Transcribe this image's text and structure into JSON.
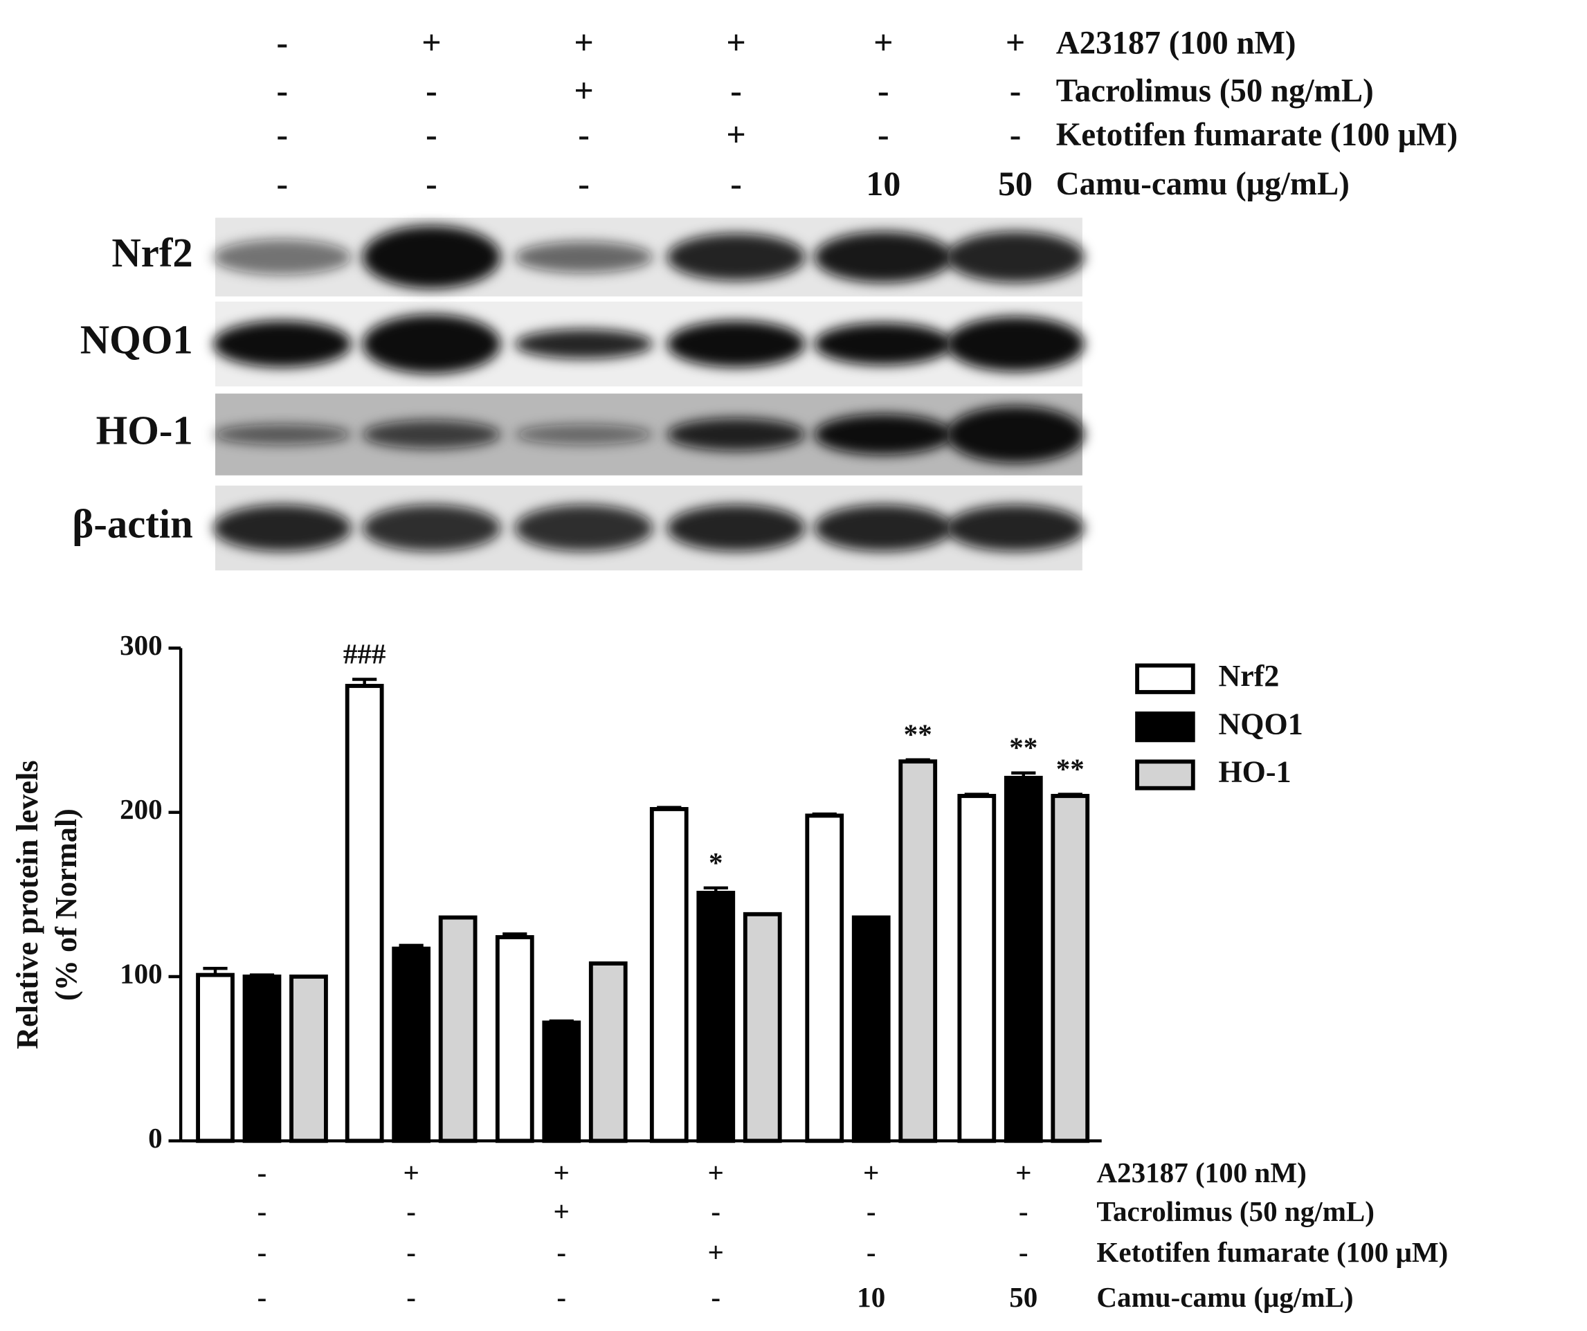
{
  "chart_data": {
    "type": "bar",
    "treatments": [
      {
        "label": "A23187 (100 nM)",
        "marks": [
          "-",
          "+",
          "+",
          "+",
          "+",
          "+"
        ]
      },
      {
        "label": "Tacrolimus (50 ng/mL)",
        "marks": [
          "-",
          "-",
          "+",
          "-",
          "-",
          "-"
        ]
      },
      {
        "label": "Ketotifen fumarate (100 μM)",
        "marks": [
          "-",
          "-",
          "-",
          "+",
          "-",
          "-"
        ]
      },
      {
        "label": "Camu-camu (μg/mL)",
        "marks": [
          "-",
          "-",
          "-",
          "-",
          "10",
          "50"
        ]
      }
    ],
    "blot_labels": [
      "Nrf2",
      "NQO1",
      "HO-1",
      "β-actin"
    ],
    "y_label": [
      "Relative protein levels",
      "(% of Normal)"
    ],
    "categories": [
      null,
      null,
      null,
      null,
      null,
      null
    ],
    "series": [
      {
        "name": "Nrf2",
        "color": "#ffffff",
        "values": [
          101,
          277,
          124,
          202,
          198,
          210
        ],
        "errors": [
          4,
          4,
          2,
          1,
          1,
          1
        ],
        "significance": [
          null,
          "###",
          null,
          null,
          null,
          null
        ]
      },
      {
        "name": "NQO1",
        "color": "#000000",
        "values": [
          100,
          117,
          72,
          151,
          136,
          221
        ],
        "errors": [
          1,
          2,
          1,
          3,
          0,
          3
        ],
        "significance": [
          null,
          null,
          null,
          "*",
          null,
          "**"
        ]
      },
      {
        "name": "HO-1",
        "color": "#d3d3d3",
        "values": [
          100,
          136,
          108,
          138,
          231,
          210
        ],
        "errors": [
          0,
          0,
          0,
          0,
          1,
          1
        ],
        "significance": [
          null,
          null,
          null,
          null,
          "**",
          "**"
        ]
      }
    ],
    "ylim": [
      0,
      300
    ],
    "yticks": [
      0,
      100,
      200,
      300
    ]
  }
}
